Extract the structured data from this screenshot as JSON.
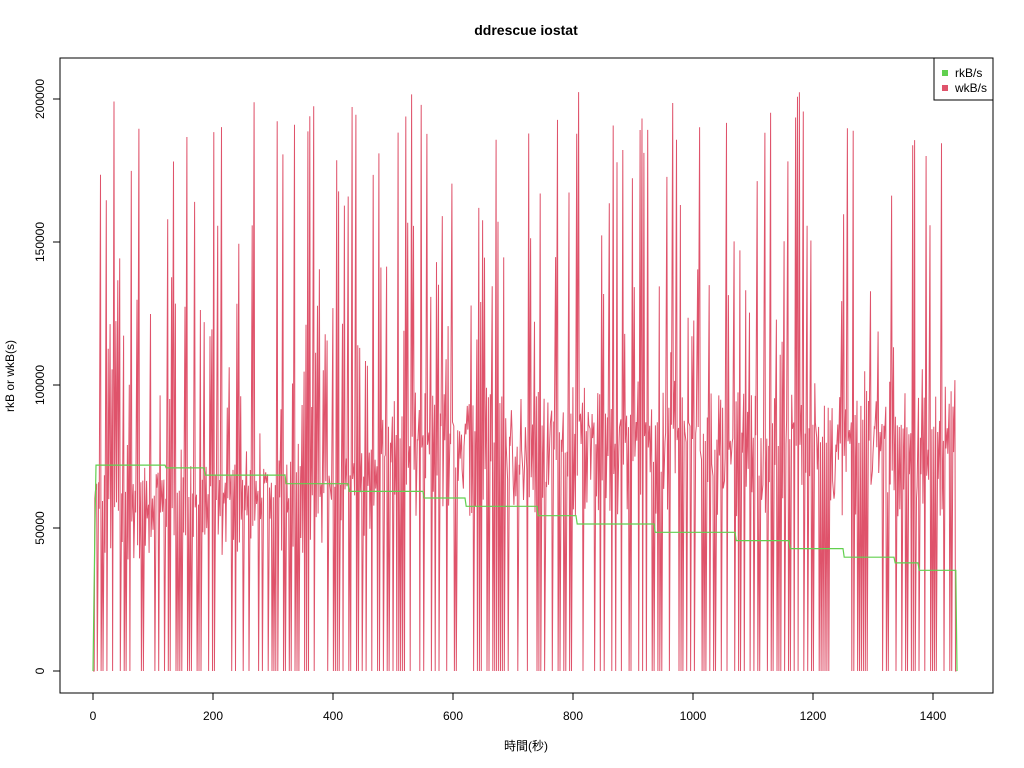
{
  "chart_data": {
    "type": "line",
    "title": "ddrescue iostat",
    "xlabel": "時間(秒)",
    "ylabel": "rkB or wkB(s)",
    "xlim": [
      0,
      1440
    ],
    "ylim": [
      0,
      205000
    ],
    "xticks": [
      0,
      200,
      400,
      600,
      800,
      1000,
      1200,
      1400
    ],
    "yticks": [
      0,
      50000,
      100000,
      150000,
      200000
    ],
    "legend_position": "top-right",
    "series": [
      {
        "name": "rkB/s",
        "color": "#61D04F",
        "kind": "step",
        "points": [
          [
            0,
            0
          ],
          [
            3,
            47000
          ],
          [
            5,
            72000
          ],
          [
            120,
            72000
          ],
          [
            122,
            71000
          ],
          [
            185,
            71000
          ],
          [
            187,
            68500
          ],
          [
            320,
            68500
          ],
          [
            322,
            65500
          ],
          [
            425,
            65500
          ],
          [
            427,
            62800
          ],
          [
            550,
            62800
          ],
          [
            552,
            60500
          ],
          [
            620,
            60500
          ],
          [
            622,
            57600
          ],
          [
            740,
            57600
          ],
          [
            742,
            54300
          ],
          [
            805,
            54300
          ],
          [
            807,
            51400
          ],
          [
            935,
            51400
          ],
          [
            937,
            48500
          ],
          [
            1070,
            48500
          ],
          [
            1072,
            45600
          ],
          [
            1160,
            45600
          ],
          [
            1162,
            42800
          ],
          [
            1250,
            42800
          ],
          [
            1252,
            39800
          ],
          [
            1335,
            39800
          ],
          [
            1337,
            37800
          ],
          [
            1375,
            37800
          ],
          [
            1377,
            35200
          ],
          [
            1438,
            35200
          ],
          [
            1440,
            0
          ]
        ]
      },
      {
        "name": "wkB/s",
        "color": "#DF536B",
        "kind": "spikes",
        "spike_interval_s": 3.2,
        "peak_range": [
          60000,
          203000
        ],
        "mid_band_by_x": [
          [
            0,
            70000
          ],
          [
            400,
            75000
          ],
          [
            520,
            98000
          ],
          [
            1440,
            98000
          ]
        ],
        "baseline": 0
      }
    ]
  }
}
